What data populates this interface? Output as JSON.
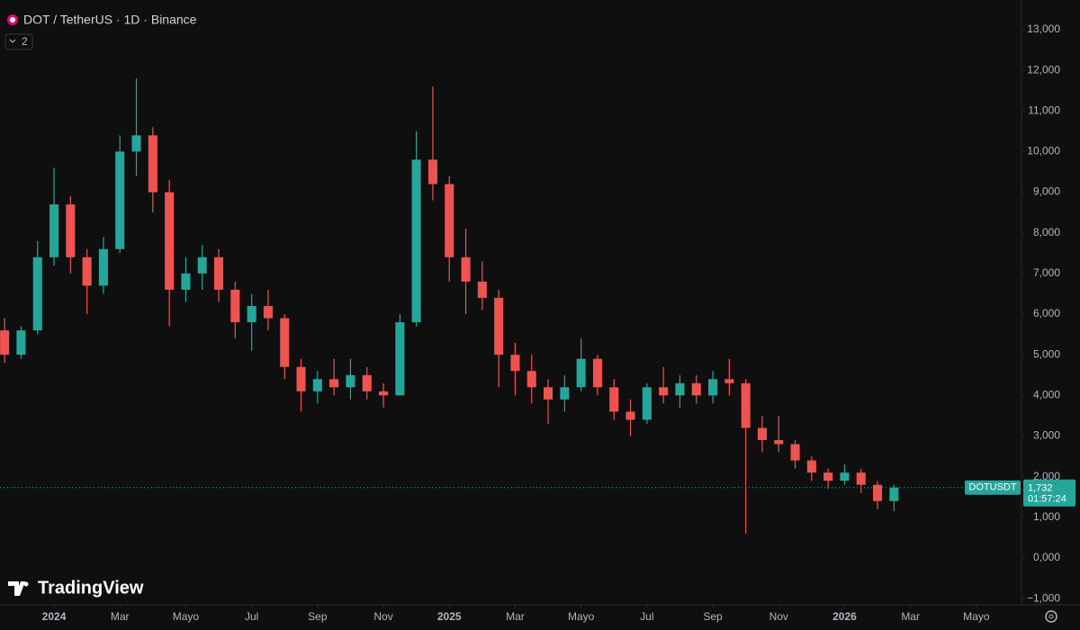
{
  "chart_data": {
    "type": "candlestick",
    "title": "DOT / TetherUS · 1D · Binance",
    "indicator_count": "2",
    "brand": "TradingView",
    "symbol_tag": "DOTUSDT",
    "countdown": "01:57:24",
    "last_price": {
      "value": 1.732,
      "label": "1,732"
    },
    "up_color": "#26a69a",
    "down_color": "#ef5350",
    "x": [
      -1.5,
      -1.0,
      -0.5,
      0.0,
      0.5,
      1.0,
      1.5,
      2.0,
      2.5,
      3.0,
      3.5,
      4.0,
      4.5,
      5.0,
      5.5,
      6.0,
      6.5,
      7.0,
      7.5,
      8.0,
      8.5,
      9.0,
      9.5,
      10.0,
      10.5,
      11.0,
      11.5,
      12.0,
      12.5,
      13.0,
      13.5,
      14.0,
      14.5,
      15.0,
      15.5,
      16.0,
      16.5,
      17.0,
      17.5,
      18.0,
      18.5,
      19.0,
      19.5,
      20.0,
      20.5,
      21.0,
      21.5,
      22.0,
      22.5,
      23.0,
      23.5,
      24.0,
      24.5,
      25.0,
      25.5
    ],
    "open": [
      5.6,
      5.0,
      5.6,
      7.4,
      8.7,
      7.4,
      6.7,
      7.6,
      10.0,
      10.4,
      9.0,
      6.6,
      7.0,
      7.4,
      6.6,
      5.8,
      6.2,
      5.9,
      4.7,
      4.1,
      4.4,
      4.2,
      4.5,
      4.1,
      4.0,
      5.8,
      9.8,
      9.2,
      7.4,
      6.8,
      6.4,
      5.0,
      4.6,
      4.2,
      3.9,
      4.2,
      4.9,
      4.2,
      3.6,
      3.4,
      4.2,
      4.0,
      4.3,
      4.0,
      4.4,
      4.3,
      3.2,
      2.9,
      2.8,
      2.4,
      2.1,
      1.9,
      2.1,
      1.8,
      1.4
    ],
    "high": [
      5.9,
      5.7,
      7.8,
      9.6,
      8.9,
      7.6,
      7.9,
      10.4,
      11.8,
      10.6,
      9.3,
      7.4,
      7.7,
      7.6,
      6.8,
      6.5,
      6.6,
      6.0,
      4.9,
      4.6,
      4.9,
      4.9,
      4.7,
      4.3,
      6.0,
      10.5,
      11.6,
      9.4,
      8.1,
      7.3,
      6.6,
      5.3,
      5.0,
      4.4,
      4.5,
      5.4,
      5.0,
      4.4,
      3.9,
      4.3,
      4.7,
      4.5,
      4.5,
      4.6,
      4.9,
      4.4,
      3.5,
      3.5,
      2.9,
      2.5,
      2.2,
      2.3,
      2.2,
      1.9,
      1.8
    ],
    "low": [
      4.8,
      4.9,
      5.5,
      7.2,
      7.0,
      6.0,
      6.5,
      7.5,
      9.4,
      8.5,
      5.7,
      6.3,
      6.6,
      6.3,
      5.4,
      5.1,
      5.6,
      4.4,
      3.6,
      3.8,
      4.0,
      3.9,
      3.9,
      3.7,
      4.0,
      5.7,
      8.8,
      6.8,
      6.0,
      6.1,
      4.2,
      4.0,
      3.8,
      3.3,
      3.6,
      4.1,
      4.0,
      3.4,
      3.0,
      3.3,
      3.8,
      3.7,
      3.8,
      3.8,
      4.0,
      0.6,
      2.6,
      2.6,
      2.2,
      1.9,
      1.7,
      1.8,
      1.6,
      1.2,
      1.15
    ],
    "close": [
      5.0,
      5.6,
      7.4,
      8.7,
      7.4,
      6.7,
      7.6,
      10.0,
      10.4,
      9.0,
      6.6,
      7.0,
      7.4,
      6.6,
      5.8,
      6.2,
      5.9,
      4.7,
      4.1,
      4.4,
      4.2,
      4.5,
      4.1,
      4.0,
      5.8,
      9.8,
      9.2,
      7.4,
      6.8,
      6.4,
      5.0,
      4.6,
      4.2,
      3.9,
      4.2,
      4.9,
      4.2,
      3.6,
      3.4,
      4.2,
      4.0,
      4.3,
      4.0,
      4.4,
      4.3,
      3.2,
      2.9,
      2.8,
      2.4,
      2.1,
      1.9,
      2.1,
      1.8,
      1.4,
      1.732
    ],
    "xlim": [
      -1.64,
      29.37
    ],
    "xticks": [
      {
        "value": 0,
        "label": "2024"
      },
      {
        "value": 2,
        "label": "Mar"
      },
      {
        "value": 4,
        "label": "Mayo"
      },
      {
        "value": 6,
        "label": "Jul"
      },
      {
        "value": 8,
        "label": "Sep"
      },
      {
        "value": 10,
        "label": "Nov"
      },
      {
        "value": 12,
        "label": "2025"
      },
      {
        "value": 14,
        "label": "Mar"
      },
      {
        "value": 16,
        "label": "Mayo"
      },
      {
        "value": 18,
        "label": "Jul"
      },
      {
        "value": 20,
        "label": "Sep"
      },
      {
        "value": 22,
        "label": "Nov"
      },
      {
        "value": 24,
        "label": "2026"
      },
      {
        "value": 26,
        "label": "Mar"
      },
      {
        "value": 28,
        "label": "Mayo"
      }
    ],
    "ylim": [
      -1.33,
      13.73
    ],
    "yticks": [
      {
        "value": 13,
        "label": "13,000"
      },
      {
        "value": 12,
        "label": "12,000"
      },
      {
        "value": 11,
        "label": "11,000"
      },
      {
        "value": 10,
        "label": "10,000"
      },
      {
        "value": 9,
        "label": "9,000"
      },
      {
        "value": 8,
        "label": "8,000"
      },
      {
        "value": 7,
        "label": "7,000"
      },
      {
        "value": 6,
        "label": "6,000"
      },
      {
        "value": 5,
        "label": "5,000"
      },
      {
        "value": 4,
        "label": "4,000"
      },
      {
        "value": 3,
        "label": "3,000"
      },
      {
        "value": 2,
        "label": "2,000"
      },
      {
        "value": 1,
        "label": "1,000"
      },
      {
        "value": 0,
        "label": "0,000"
      },
      {
        "value": -1,
        "label": "−1,000"
      }
    ]
  }
}
